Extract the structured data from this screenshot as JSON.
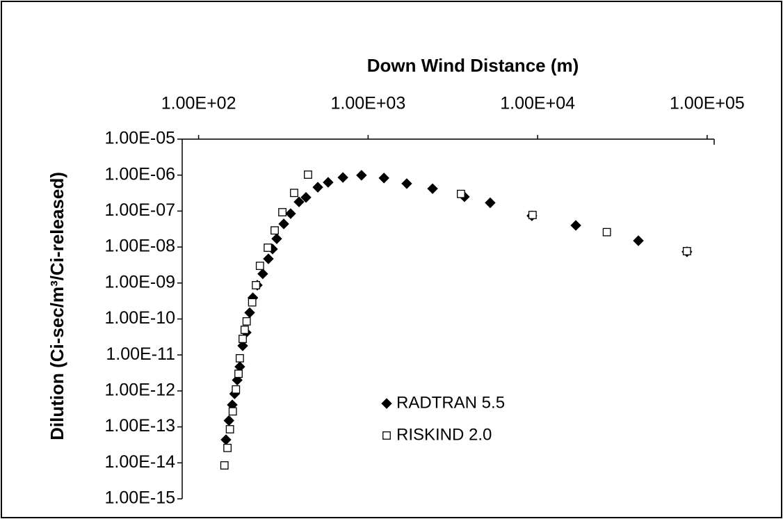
{
  "chart_data": {
    "type": "scatter",
    "x_label": "Down Wind Distance (m)",
    "y_label": "Dilution (Ci-sec/m³/Ci-released)",
    "x_log": true,
    "y_log": true,
    "xlim": [
      80,
      110000
    ],
    "ylim": [
      1e-15,
      1e-05
    ],
    "xticks": [
      {
        "value": 100,
        "label": "1.00E+02"
      },
      {
        "value": 1000,
        "label": "1.00E+03"
      },
      {
        "value": 10000,
        "label": "1.00E+04"
      },
      {
        "value": 100000,
        "label": "1.00E+05"
      }
    ],
    "yticks": [
      {
        "value": 1e-15,
        "label": "1.00E-15"
      },
      {
        "value": 1e-14,
        "label": "1.00E-14"
      },
      {
        "value": 1e-13,
        "label": "1.00E-13"
      },
      {
        "value": 1e-12,
        "label": "1.00E-12"
      },
      {
        "value": 1e-11,
        "label": "1.00E-11"
      },
      {
        "value": 1e-10,
        "label": "1.00E-10"
      },
      {
        "value": 1e-09,
        "label": "1.00E-09"
      },
      {
        "value": 1e-08,
        "label": "1.00E-08"
      },
      {
        "value": 1e-07,
        "label": "1.00E-07"
      },
      {
        "value": 1e-06,
        "label": "1.00E-06"
      },
      {
        "value": 1e-05,
        "label": "1.00E-05"
      }
    ],
    "series": [
      {
        "name": "RADTRAN 5.5",
        "color": "#000000",
        "marker": "diamond",
        "x": [
          145,
          151,
          158,
          163,
          169,
          175,
          182,
          191,
          200,
          209,
          222,
          239,
          258,
          273,
          289,
          318,
          349,
          391,
          430,
          505,
          581,
          710,
          914,
          1240,
          1690,
          2400,
          3700,
          5250,
          9250,
          16800,
          39300,
          76000
        ],
        "values": [
          4.4e-14,
          1.5e-13,
          4.1e-13,
          8.3e-13,
          2e-12,
          4.7e-12,
          1.8e-11,
          4.2e-11,
          1.5e-10,
          3.9e-10,
          8.7e-10,
          1.8e-09,
          4.7e-09,
          8.8e-09,
          1.7e-08,
          4.4e-08,
          8.5e-08,
          1.8e-07,
          2.4e-07,
          4.6e-07,
          6.3e-07,
          8.6e-07,
          9.9e-07,
          8.3e-07,
          5.8e-07,
          4.2e-07,
          2.5e-07,
          1.7e-07,
          7.4e-08,
          4e-08,
          1.5e-08,
          7.4e-09
        ]
      },
      {
        "name": "RISKIND 2.0",
        "color": "#ffffff",
        "marker": "square",
        "x": [
          142,
          148,
          153,
          159,
          166,
          172,
          175,
          182,
          187,
          192,
          207,
          218,
          230,
          256,
          281,
          312,
          366,
          442,
          3530,
          9330,
          25600,
          76000
        ],
        "values": [
          8.5e-15,
          2.6e-14,
          8.6e-14,
          2.7e-13,
          1.1e-12,
          3e-12,
          8.1e-12,
          2.8e-11,
          5e-11,
          8.6e-11,
          2.9e-10,
          8.7e-10,
          3e-09,
          9.6e-09,
          2.9e-08,
          9.3e-08,
          3.2e-07,
          1.03e-06,
          3e-07,
          7.8e-08,
          2.6e-08,
          7.7e-09
        ]
      }
    ]
  }
}
